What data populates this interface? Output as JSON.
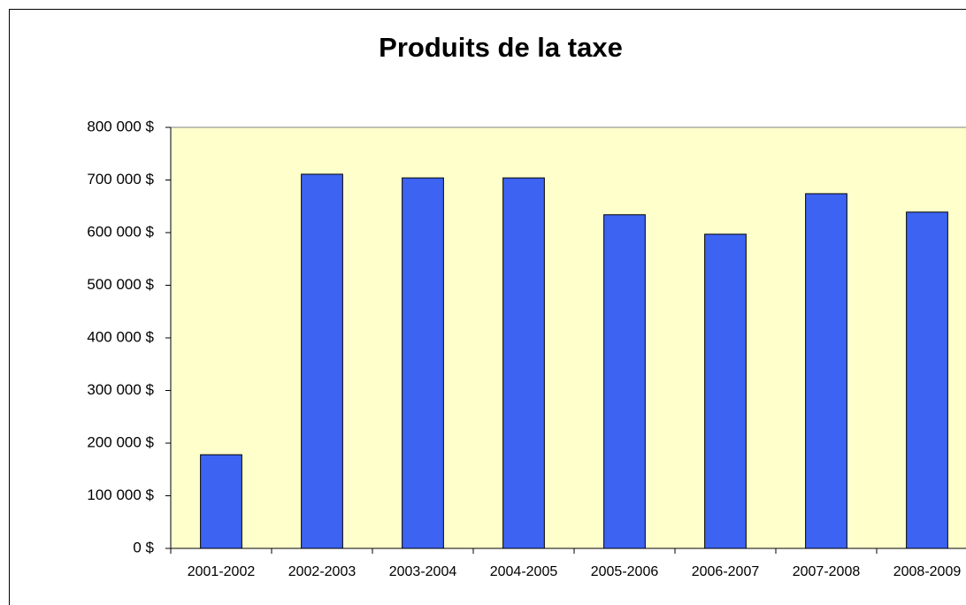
{
  "chart_data": {
    "type": "bar",
    "title": "Produits de la taxe",
    "categories": [
      "2001-2002",
      "2002-2003",
      "2003-2004",
      "2004-2005",
      "2005-2006",
      "2006-2007",
      "2007-2008",
      "2008-2009"
    ],
    "values": [
      178000,
      711000,
      704000,
      704000,
      634000,
      597000,
      674000,
      639000
    ],
    "color": "#3d63f2",
    "background": "#ffffcc",
    "ylim": [
      0,
      800000
    ],
    "yticks": [
      {
        "value": 0,
        "label": "0 $"
      },
      {
        "value": 100000,
        "label": "100 000 $"
      },
      {
        "value": 200000,
        "label": "200 000 $"
      },
      {
        "value": 300000,
        "label": "300 000 $"
      },
      {
        "value": 400000,
        "label": "400 000 $"
      },
      {
        "value": 500000,
        "label": "500 000 $"
      },
      {
        "value": 600000,
        "label": "600 000 $"
      },
      {
        "value": 700000,
        "label": "700 000 $"
      },
      {
        "value": 800000,
        "label": "800 000 $"
      }
    ],
    "grid": false
  }
}
